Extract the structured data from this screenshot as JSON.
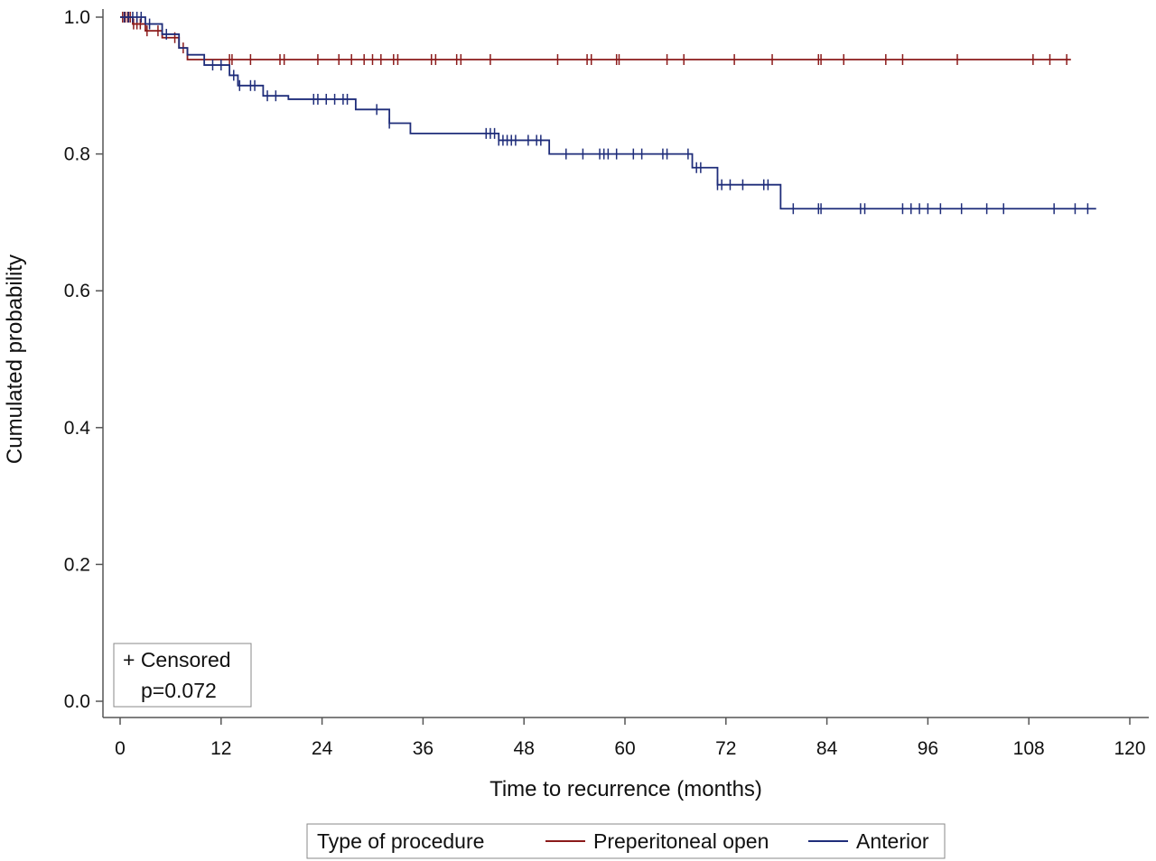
{
  "chart_data": {
    "type": "line",
    "step": true,
    "title": "",
    "xlabel": "Time to recurrence (months)",
    "ylabel": "Cumulated probability",
    "xlim": [
      0,
      120
    ],
    "ylim": [
      0,
      1
    ],
    "xticks": [
      0,
      12,
      24,
      36,
      48,
      60,
      72,
      84,
      96,
      108,
      120
    ],
    "yticks": [
      0.0,
      0.2,
      0.4,
      0.6,
      0.8,
      1.0
    ],
    "xtick_labels": [
      "0",
      "12",
      "24",
      "36",
      "48",
      "60",
      "72",
      "84",
      "96",
      "108",
      "120"
    ],
    "ytick_labels": [
      "0.0",
      "0.2",
      "0.4",
      "0.6",
      "0.8",
      "1.0"
    ],
    "grid": false,
    "censor_box": {
      "symbol_label": "+ Censored",
      "p_value": "p=0.072"
    },
    "legend": {
      "title": "Type of procedure",
      "position": "bottom"
    },
    "series": [
      {
        "name": "Preperitoneal open",
        "color": "#8b1a1a",
        "steps": [
          [
            0,
            1.0
          ],
          [
            1.5,
            0.99
          ],
          [
            3,
            0.98
          ],
          [
            5,
            0.97
          ],
          [
            7,
            0.955
          ],
          [
            8,
            0.938
          ],
          [
            113,
            0.938
          ]
        ],
        "censored": [
          0.3,
          0.6,
          0.9,
          1.2,
          1.6,
          2.0,
          2.4,
          3.2,
          4.5,
          6.5,
          7.5,
          13,
          13.3,
          15.5,
          19,
          19.5,
          23.5,
          26,
          27.5,
          29,
          30,
          31,
          32.5,
          33,
          37,
          37.5,
          40,
          40.5,
          44,
          52,
          55.5,
          56,
          59,
          59.3,
          65,
          67,
          73,
          77.5,
          83,
          83.3,
          86,
          91,
          93,
          99.5,
          108.5,
          110.5,
          112.5
        ]
      },
      {
        "name": "Anterior",
        "color": "#1f2d7a",
        "steps": [
          [
            0,
            1.0
          ],
          [
            3,
            0.99
          ],
          [
            5,
            0.975
          ],
          [
            7,
            0.955
          ],
          [
            8,
            0.945
          ],
          [
            10,
            0.93
          ],
          [
            13,
            0.915
          ],
          [
            14,
            0.9
          ],
          [
            17,
            0.885
          ],
          [
            20,
            0.88
          ],
          [
            28,
            0.865
          ],
          [
            32,
            0.845
          ],
          [
            34.5,
            0.83
          ],
          [
            45,
            0.82
          ],
          [
            51,
            0.8
          ],
          [
            68,
            0.78
          ],
          [
            71,
            0.755
          ],
          [
            78.5,
            0.72
          ],
          [
            116,
            0.72
          ]
        ],
        "censored": [
          0.5,
          1.0,
          1.5,
          2.0,
          2.5,
          3.5,
          5.5,
          11,
          12,
          13.5,
          14.2,
          15.5,
          16,
          17.5,
          18.5,
          23,
          23.5,
          24.5,
          25.5,
          26.5,
          27,
          30.5,
          32,
          43.5,
          44,
          44.5,
          45,
          45.5,
          46,
          46.5,
          47,
          48.5,
          49.5,
          50,
          53,
          55,
          57,
          57.5,
          58,
          59,
          61,
          62,
          64.5,
          65,
          67.5,
          68.5,
          69,
          71,
          71.5,
          72.5,
          74,
          76.5,
          77,
          80,
          83,
          83.3,
          88,
          88.5,
          93,
          94,
          95,
          96,
          97.5,
          100,
          103,
          105,
          111,
          113.5,
          115
        ]
      }
    ]
  }
}
